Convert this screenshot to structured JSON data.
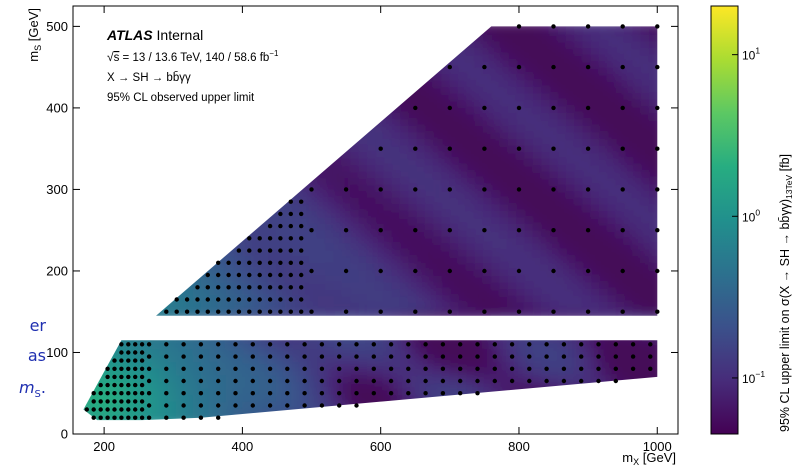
{
  "side_text": {
    "line1": "er",
    "line2": "as",
    "line3": "m",
    "line3_sub": "S",
    "line3_end": "."
  },
  "chart_data": {
    "type": "heatmap",
    "xlabel": "m",
    "xlabel_sub": "X",
    "xlabel_unit": "[GeV]",
    "ylabel": "m",
    "ylabel_sub": "S",
    "ylabel_unit": "[GeV]",
    "xlim": [
      155,
      1030
    ],
    "ylim": [
      0,
      525
    ],
    "x_ticks": [
      200,
      400,
      600,
      800,
      1000
    ],
    "y_ticks": [
      0,
      100,
      200,
      300,
      400,
      500
    ],
    "annotation": {
      "experiment": "ATLAS",
      "status": "Internal",
      "energy_line": "= 13 / 13.6 TeV, 140 / 58.6 fb",
      "energy_sqrt": "s",
      "energy_sup": "−1",
      "process": "X → SH → bb̄γγ",
      "limit_text": "95% CL observed upper limit"
    },
    "colorbar": {
      "label": "95% CL upper limit on σ(X → SH → bb̄γγ)",
      "label_sub": "13TeV",
      "label_unit": "[fb]",
      "scale": "log",
      "range": [
        0.045,
        20
      ],
      "ticks": [
        {
          "value": 10,
          "base": "10",
          "exp": "1"
        },
        {
          "value": 1,
          "base": "10",
          "exp": "0"
        },
        {
          "value": 0.1,
          "base": "10",
          "exp": "−1"
        }
      ],
      "colors": [
        "#440154",
        "#472c7a",
        "#3b518b",
        "#2c718e",
        "#21908d",
        "#27ad81",
        "#5cc863",
        "#aadc32",
        "#fde725"
      ]
    },
    "regions": {
      "upper": [
        [
          275,
          145
        ],
        [
          760,
          500
        ],
        [
          1000,
          500
        ],
        [
          1000,
          145
        ]
      ],
      "lower": [
        [
          170,
          30
        ],
        [
          225,
          115
        ],
        [
          1000,
          115
        ],
        [
          1000,
          70
        ],
        [
          340,
          20
        ],
        [
          255,
          17
        ],
        [
          190,
          17
        ]
      ]
    },
    "grid_points": {
      "x_step": 25,
      "y_step": 25,
      "comment_free_lists": true
    }
  }
}
